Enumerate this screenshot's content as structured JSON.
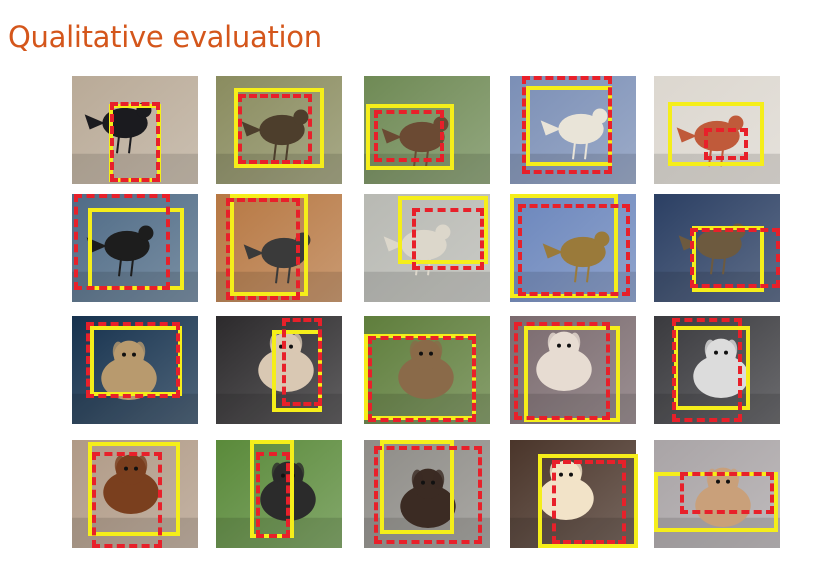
{
  "slide": {
    "title": "Qualitative evaluation"
  },
  "legend_colors": {
    "yellow_box": "#f5ee1a",
    "red_dashed_box": "#e8202a",
    "title": "#d4561b"
  },
  "images": [
    {
      "subject": "bird",
      "bg": "#b9aa97",
      "fg": "#1b1b1f"
    },
    {
      "subject": "bird",
      "bg": "#8a8c5f",
      "fg": "#4d3e2c"
    },
    {
      "subject": "bird",
      "bg": "#6f8a55",
      "fg": "#6b4a33"
    },
    {
      "subject": "bird",
      "bg": "#7b8fb6",
      "fg": "#e9e4d8"
    },
    {
      "subject": "bird",
      "bg": "#dcd7cf",
      "fg": "#c05a3a"
    },
    {
      "subject": "bird",
      "bg": "#4f6b86",
      "fg": "#1d1d1d"
    },
    {
      "subject": "bird",
      "bg": "#b77843",
      "fg": "#3a3a3a"
    },
    {
      "subject": "bird",
      "bg": "#b8b9b3",
      "fg": "#dcd7cb"
    },
    {
      "subject": "bird",
      "bg": "#6b86bc",
      "fg": "#9a7a3a"
    },
    {
      "subject": "bird",
      "bg": "#2b3f63",
      "fg": "#6d5a3f"
    },
    {
      "subject": "dog",
      "bg": "#16324e",
      "fg": "#b89a6e"
    },
    {
      "subject": "dog",
      "bg": "#2c2a2c",
      "fg": "#d9c8b3"
    },
    {
      "subject": "dog",
      "bg": "#5f7e3c",
      "fg": "#8a6a49"
    },
    {
      "subject": "dog",
      "bg": "#7a6a6e",
      "fg": "#e7dcd2"
    },
    {
      "subject": "dog",
      "bg": "#3a3a3e",
      "fg": "#dcdcdc"
    },
    {
      "subject": "dog",
      "bg": "#b09a86",
      "fg": "#7a3f1e"
    },
    {
      "subject": "dog",
      "bg": "#5a8a3a",
      "fg": "#2b2b2b"
    },
    {
      "subject": "dog",
      "bg": "#8e8c87",
      "fg": "#3b2b23"
    },
    {
      "subject": "dog",
      "bg": "#4a352a",
      "fg": "#f2e3c8"
    },
    {
      "subject": "dog",
      "bg": "#a9a4a6",
      "fg": "#c9a07a"
    }
  ]
}
